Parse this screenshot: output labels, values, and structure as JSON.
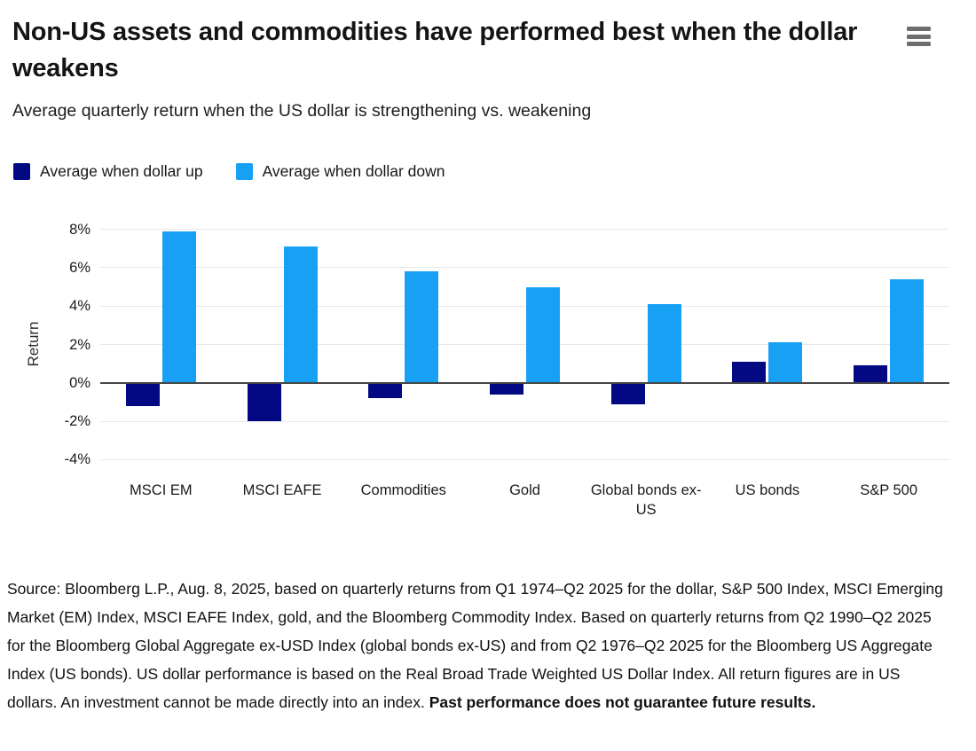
{
  "header": {
    "title": "Non-US assets and commodities have performed best when the dollar weakens",
    "subtitle": "Average quarterly return when the US dollar is strengthening vs. weakening",
    "menu_icon": "hamburger-menu-icon"
  },
  "colors": {
    "dollar_up": "#030982",
    "dollar_down": "#18A0F5",
    "gridline": "#e7e7e7",
    "zero_line": "#454545",
    "menu_icon": "#6e6e6e"
  },
  "chart_data": {
    "type": "bar",
    "title": "Non-US assets and commodities have performed best when the dollar weakens",
    "subtitle": "Average quarterly return when the US dollar is strengthening vs. weakening",
    "categories": [
      "MSCI EM",
      "MSCI EAFE",
      "Commodities",
      "Gold",
      "Global bonds ex-US",
      "US bonds",
      "S&P 500"
    ],
    "series": [
      {
        "name": "Average when dollar up",
        "color": "#030982",
        "values": [
          -1.2,
          -2.0,
          -0.8,
          -0.6,
          -1.1,
          1.1,
          0.9
        ]
      },
      {
        "name": "Average when dollar down",
        "color": "#18A0F5",
        "values": [
          7.9,
          7.1,
          5.8,
          5.0,
          4.1,
          2.1,
          5.4
        ]
      }
    ],
    "xlabel": "",
    "ylabel": "Return",
    "yticks": [
      8,
      6,
      4,
      2,
      0,
      -2,
      -4
    ],
    "ytick_suffix": "%",
    "ylim": [
      -4.35,
      8.35
    ],
    "grid": true,
    "legend_position": "top-left"
  },
  "footer": {
    "source_text": "Source: Bloomberg L.P., Aug. 8, 2025, based on quarterly returns from Q1 1974–Q2 2025 for the dollar, S&P 500 Index, MSCI Emerging Market (EM) Index, MSCI EAFE Index, gold, and the Bloomberg Commodity Index. Based on quarterly returns from Q2 1990–Q2 2025 for the Bloomberg Global Aggregate ex-USD Index (global bonds ex-US) and from Q2 1976–Q2 2025 for the Bloomberg US Aggregate Index (US bonds). US dollar performance is based on the Real Broad Trade Weighted US Dollar Index. All return figures are in US dollars. An investment cannot be made directly into an index. ",
    "disclaimer_bold": "Past performance does not guarantee future results."
  }
}
